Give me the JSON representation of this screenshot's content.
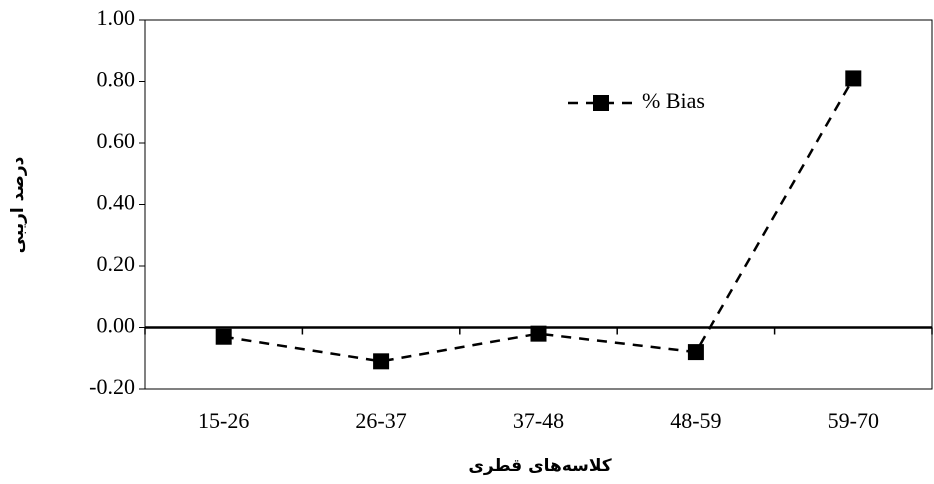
{
  "chart_data": {
    "type": "line",
    "categories": [
      "15-26",
      "26-37",
      "37-48",
      "48-59",
      "59-70"
    ],
    "series": [
      {
        "name": "% Bias",
        "color": "#000000",
        "values": [
          -0.03,
          -0.11,
          -0.02,
          -0.08,
          0.81
        ]
      }
    ],
    "ylim": [
      -0.2,
      1.0
    ],
    "yticks": [
      {
        "value": -0.2,
        "label": "-0.20"
      },
      {
        "value": 0,
        "label": "0.00"
      },
      {
        "value": 0.2,
        "label": "0.20"
      },
      {
        "value": 0.4,
        "label": "0.40"
      },
      {
        "value": 0.6,
        "label": "0.60"
      },
      {
        "value": 0.8,
        "label": "0.80"
      },
      {
        "value": 1.0,
        "label": "1.00"
      }
    ],
    "y_label": "درصد اریبی",
    "x_label": "کلاسه‌های قطری",
    "legend": true,
    "line_style": "dashed"
  }
}
